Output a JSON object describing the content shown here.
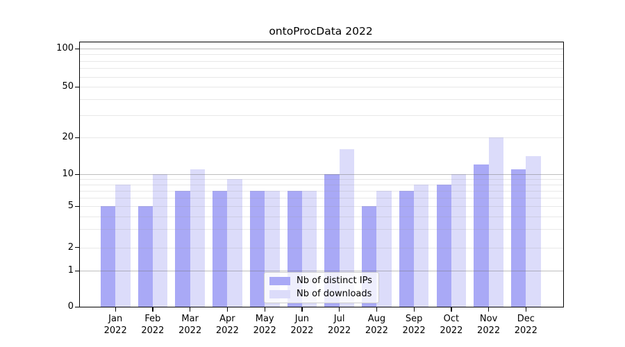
{
  "title": "ontoProcData 2022",
  "colors": {
    "distinct_ips_bar": "#a9a9f6",
    "downloads_bar": "#dcdcfa",
    "grid_major": "#c6c6c6",
    "grid_minor": "#e8e8e8",
    "spine": "#000000",
    "background": "#ffffff"
  },
  "chart_data": {
    "type": "bar",
    "title": "ontoProcData 2022",
    "x_months": [
      "Jan",
      "Feb",
      "Mar",
      "Apr",
      "May",
      "Jun",
      "Jul",
      "Aug",
      "Sep",
      "Oct",
      "Nov",
      "Dec"
    ],
    "x_year": "2022",
    "series": [
      {
        "name": "Nb of distinct IPs",
        "color": "#a9a9f6",
        "values": [
          5,
          5,
          7,
          7,
          7,
          7,
          10,
          5,
          7,
          8,
          12,
          11
        ]
      },
      {
        "name": "Nb of downloads",
        "color": "#dcdcfa",
        "values": [
          8,
          10,
          11,
          9,
          7,
          7,
          16,
          7,
          8,
          10,
          20,
          14
        ]
      }
    ],
    "y_axis": {
      "scale": "symlog",
      "tick_values": [
        0,
        1,
        2,
        5,
        10,
        20,
        50,
        100
      ],
      "tick_labels": [
        "0",
        "1",
        "2",
        "5",
        "10",
        "20",
        "50",
        "100"
      ],
      "major_gridlines": [
        1,
        10,
        100
      ],
      "minor_gridlines": [
        2,
        3,
        4,
        5,
        6,
        7,
        8,
        9,
        20,
        30,
        40,
        50,
        60,
        70,
        80,
        90
      ],
      "grid_on": true,
      "grid_above_bars": true
    },
    "legend": {
      "position": "lower-center",
      "entries": [
        "Nb of distinct IPs",
        "Nb of downloads"
      ]
    }
  }
}
